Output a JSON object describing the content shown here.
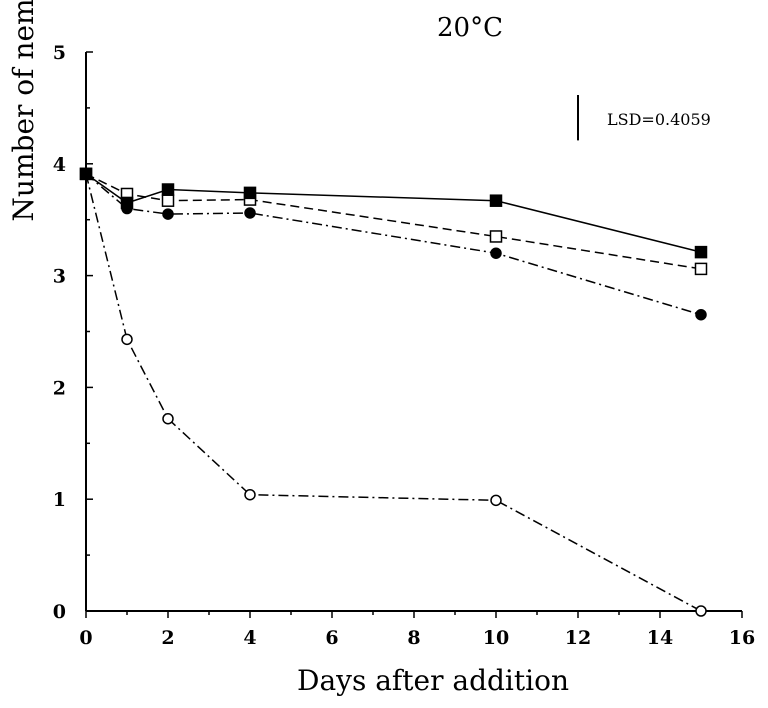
{
  "chart_data": {
    "type": "line",
    "title": "20°C",
    "xlabel": "Days after addition",
    "ylabel": "Number of nem",
    "xlim": [
      0,
      16
    ],
    "ylim": [
      0,
      5
    ],
    "xticks": [
      "0",
      "2",
      "4",
      "6",
      "8",
      "10",
      "12",
      "14",
      "16"
    ],
    "yticks": [
      "0",
      "1",
      "2",
      "3",
      "4",
      "5"
    ],
    "grid": false,
    "annotation": {
      "text": "LSD=0.4059",
      "value": 0.4059,
      "anchor_x": 12
    },
    "series": [
      {
        "marker": "filled-square",
        "dash": "solid",
        "x": [
          0,
          1,
          2,
          4,
          10,
          15
        ],
        "y": [
          3.91,
          3.65,
          3.77,
          3.74,
          3.67,
          3.21
        ]
      },
      {
        "marker": "open-square",
        "dash": "dashed",
        "x": [
          0,
          1,
          2,
          4,
          10,
          15
        ],
        "y": [
          3.91,
          3.73,
          3.67,
          3.68,
          3.35,
          3.06
        ]
      },
      {
        "marker": "filled-circle",
        "dash": "dash-dot",
        "x": [
          0,
          1,
          2,
          4,
          10,
          15
        ],
        "y": [
          3.91,
          3.6,
          3.55,
          3.56,
          3.2,
          2.65
        ]
      },
      {
        "marker": "open-circle",
        "dash": "dash-dot",
        "x": [
          0,
          1,
          2,
          4,
          10,
          15
        ],
        "y": [
          3.91,
          2.43,
          1.72,
          1.04,
          0.99,
          0.0
        ]
      }
    ]
  }
}
